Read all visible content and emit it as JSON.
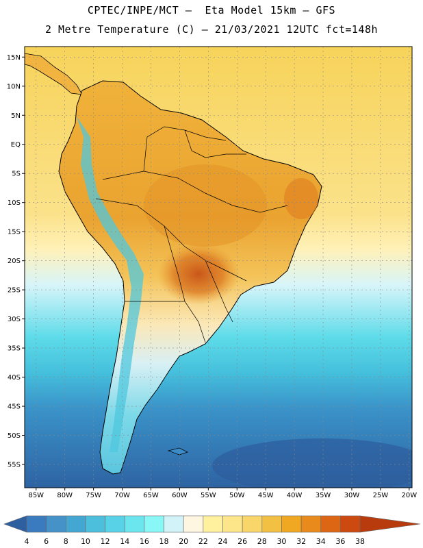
{
  "header": {
    "line1": "CPTEC/INPE/MCT —  Eta Model 15km — GFS",
    "line2": "2 Metre Temperature (C) — 21/03/2021 12UTC fct=148h"
  },
  "map": {
    "lat_labels": [
      "15N",
      "10N",
      "5N",
      "EQ",
      "5S",
      "10S",
      "15S",
      "20S",
      "25S",
      "30S",
      "35S",
      "40S",
      "45S",
      "50S",
      "55S"
    ],
    "lon_labels": [
      "85W",
      "80W",
      "75W",
      "70W",
      "65W",
      "60W",
      "55W",
      "50W",
      "45W",
      "40W",
      "35W",
      "30W",
      "25W",
      "20W"
    ]
  },
  "colorbar": {
    "ticks": [
      "4",
      "6",
      "8",
      "10",
      "12",
      "14",
      "16",
      "18",
      "20",
      "22",
      "24",
      "26",
      "28",
      "30",
      "32",
      "34",
      "36",
      "38"
    ],
    "colors": [
      "#2e5f9e",
      "#3a7bbf",
      "#4592c9",
      "#44a7d2",
      "#4cbfdd",
      "#57d2e6",
      "#6be6ee",
      "#8af7f7",
      "#d2f3f8",
      "#fff6e2",
      "#fff19e",
      "#fde58a",
      "#f9d66a",
      "#f2c042",
      "#f0a823",
      "#e88a1c",
      "#dc6613",
      "#cc4a10",
      "#b73b0d"
    ]
  }
}
